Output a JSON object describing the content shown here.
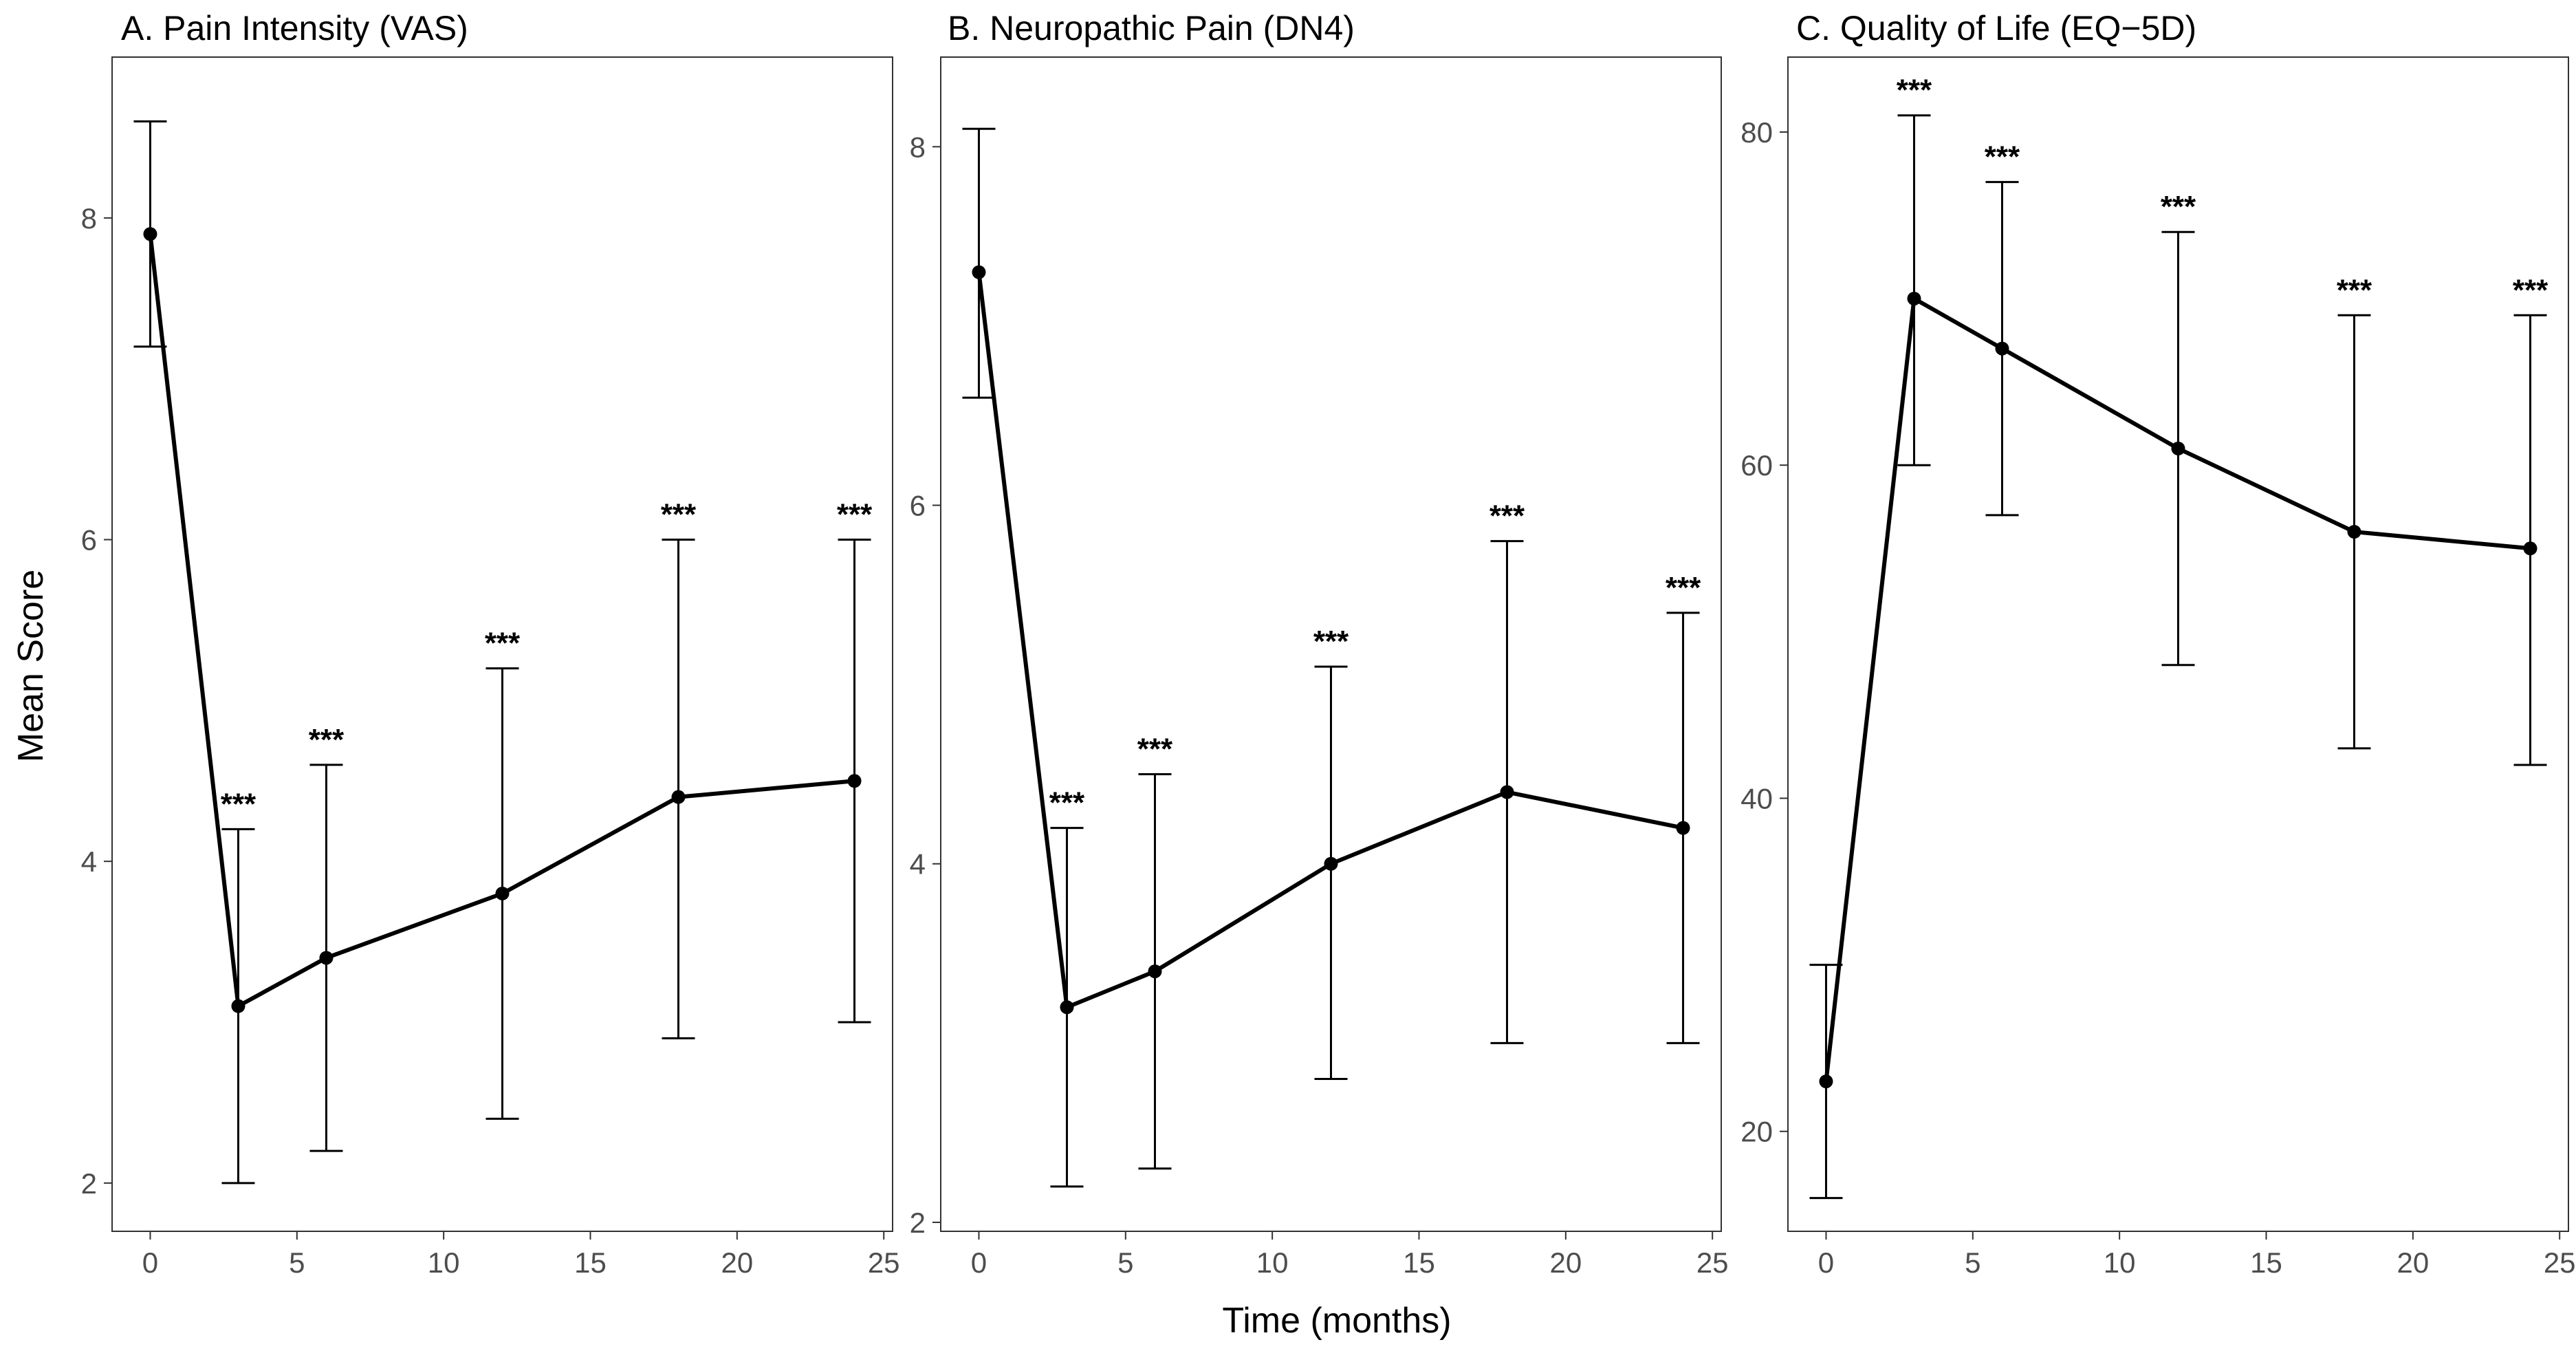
{
  "chart_data": [
    {
      "type": "line",
      "title": "A. Pain Intensity (VAS)",
      "x": [
        0,
        3,
        6,
        12,
        18,
        24
      ],
      "values": [
        7.9,
        3.1,
        3.4,
        3.8,
        4.4,
        4.5
      ],
      "error_low": [
        7.2,
        2.0,
        2.2,
        2.4,
        2.9,
        3.0
      ],
      "error_high": [
        8.6,
        4.2,
        4.6,
        5.2,
        6.0,
        6.0
      ],
      "significance": [
        "",
        "***",
        "***",
        "***",
        "***",
        "***"
      ],
      "xlim": [
        -1.3,
        25.3
      ],
      "ylim": [
        1.7,
        9.0
      ],
      "xticks": [
        0,
        5,
        10,
        15,
        20,
        25
      ],
      "yticks": [
        2,
        4,
        6,
        8
      ]
    },
    {
      "type": "line",
      "title": "B. Neuropathic Pain (DN4)",
      "x": [
        0,
        3,
        6,
        12,
        18,
        24
      ],
      "values": [
        7.3,
        3.2,
        3.4,
        4.0,
        4.4,
        4.2
      ],
      "error_low": [
        6.6,
        2.2,
        2.3,
        2.8,
        3.0,
        3.0
      ],
      "error_high": [
        8.1,
        4.2,
        4.5,
        5.1,
        5.8,
        5.4
      ],
      "significance": [
        "",
        "***",
        "***",
        "***",
        "***",
        "***"
      ],
      "xlim": [
        -1.3,
        25.3
      ],
      "ylim": [
        1.95,
        8.5
      ],
      "xticks": [
        0,
        5,
        10,
        15,
        20,
        25
      ],
      "yticks": [
        2,
        4,
        6,
        8
      ]
    },
    {
      "type": "line",
      "title": "C. Quality of Life (EQ−5D)",
      "x": [
        0,
        3,
        6,
        12,
        18,
        24
      ],
      "values": [
        23,
        70,
        67,
        61,
        56,
        55
      ],
      "error_low": [
        16,
        60,
        57,
        48,
        43,
        42
      ],
      "error_high": [
        30,
        81,
        77,
        74,
        69,
        69
      ],
      "significance": [
        "",
        "***",
        "***",
        "***",
        "***",
        "***"
      ],
      "xlim": [
        -1.3,
        25.3
      ],
      "ylim": [
        14,
        84.5
      ],
      "xticks": [
        0,
        5,
        10,
        15,
        20,
        25
      ],
      "yticks": [
        20,
        40,
        60,
        80
      ]
    }
  ],
  "xlabel": "Time (months)",
  "ylabel": "Mean Score"
}
